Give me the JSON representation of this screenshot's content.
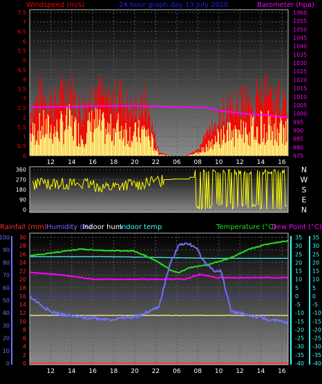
{
  "header": {
    "windspeed_label": "Windspeed (m/s)",
    "graph_title": "24 hour graph day   13 July 2010",
    "barometer_label": "Barometer (hpa)"
  },
  "bottom_header": {
    "rainfall_label": "Rainfall (mm)",
    "humidity_label": "Humidity (%)",
    "indoor_hum_label": "Indoor hum",
    "indoor_temp_label": "Indoor temp",
    "temperature_label": "Temperature (°C)",
    "dewpoint_label": "Dew Point (°C)"
  },
  "colors": {
    "windspeed": "#ff0000",
    "windgust": "#ffff80",
    "barometer": "#ff00ff",
    "direction": "#ffff00",
    "rainfall": "#ff3030",
    "humidity": "#7070ff",
    "indoor_hum": "#ffff80",
    "indoor_temp": "#40ffff",
    "temperature": "#20e020",
    "dewpoint": "#ff00ff",
    "left_axis": "#ff0000",
    "right_axis": "#ff00ff"
  },
  "chart_data": [
    {
      "type": "line",
      "title": "24 hour graph day   13 July 2010",
      "x_tick_labels": [
        "12",
        "14",
        "16",
        "18",
        "20",
        "22",
        "06",
        "08",
        "10",
        "12",
        "14",
        "16"
      ],
      "y_left": {
        "label": "Windspeed (m/s)",
        "ylim": [
          0,
          7.5
        ],
        "ticks": [
          "0",
          "0.5",
          "1",
          "1.5",
          "2",
          "2.5",
          "3",
          "3.5",
          "4",
          "4.5",
          "5",
          "5.5",
          "6",
          "6.5",
          "7",
          "7.5"
        ]
      },
      "y_right": {
        "label": "Barometer (hpa)",
        "ylim": [
          975,
          1060
        ],
        "ticks": [
          "975",
          "980",
          "985",
          "990",
          "995",
          "1000",
          "1005",
          "1010",
          "1015",
          "1020",
          "1025",
          "1030",
          "1035",
          "1040",
          "1045",
          "1050",
          "1055",
          "1060"
        ]
      },
      "series": [
        {
          "name": "Barometer (hpa)",
          "axis": "right",
          "x": [
            0,
            0.2,
            0.4,
            0.55,
            0.68,
            0.74,
            0.8,
            0.86,
            0.92,
            1
          ],
          "values": [
            1003.8,
            1004.3,
            1004.5,
            1004.0,
            1003.5,
            1001.5,
            1000.6,
            999.5,
            999.0,
            997.5
          ]
        },
        {
          "name": "Windspeed (m/s)",
          "axis": "left",
          "note": "fluctuating speed/gust bars read off the chart",
          "x": [
            0,
            0.05,
            0.1,
            0.15,
            0.2,
            0.25,
            0.3,
            0.35,
            0.4,
            0.45,
            0.5,
            0.55,
            0.6,
            0.65,
            0.7,
            0.75,
            0.8,
            0.85,
            0.9,
            0.95,
            1
          ],
          "values": [
            2.5,
            3.5,
            3.0,
            4.0,
            2.5,
            4.0,
            3.0,
            3.5,
            2.5,
            3.0,
            0.2,
            0,
            0,
            0.3,
            1.5,
            2.5,
            3.0,
            3.0,
            3.5,
            3.5,
            3.0
          ]
        }
      ]
    },
    {
      "type": "scatter",
      "x_tick_labels": [],
      "y_left": {
        "label": "",
        "ylim": [
          0,
          360
        ],
        "ticks": [
          "0",
          "90",
          "180",
          "270",
          "360"
        ]
      },
      "y_right": {
        "label": "",
        "ticks": [
          "N",
          "W",
          "S",
          "E",
          "N"
        ]
      },
      "series": [
        {
          "name": "Wind direction",
          "x": [
            0,
            0.1,
            0.2,
            0.3,
            0.45,
            0.55,
            0.64,
            0.66,
            0.7,
            0.75,
            0.8,
            0.85,
            0.9,
            0.95,
            1
          ],
          "values": [
            225,
            240,
            230,
            200,
            240,
            270,
            275,
            360,
            360,
            20,
            350,
            180,
            40,
            350,
            200
          ]
        }
      ]
    },
    {
      "type": "line",
      "x_tick_labels": [
        "12",
        "14",
        "16",
        "18",
        "20",
        "22",
        "06",
        "08",
        "10",
        "12",
        "14",
        "16"
      ],
      "y_left_outer": {
        "label": "Rainfall (mm)",
        "ylim": [
          0,
          100
        ],
        "ticks": [
          "0",
          "10",
          "20",
          "30",
          "40",
          "50",
          "60",
          "70",
          "80",
          "90",
          "100"
        ]
      },
      "y_left_inner": {
        "label": "Humidity (%)",
        "ylim": [
          0,
          30
        ],
        "ticks": [
          "0",
          "2",
          "4",
          "6",
          "8",
          "10",
          "12",
          "14",
          "16",
          "18",
          "20",
          "22",
          "24",
          "26",
          "28",
          "30"
        ]
      },
      "y_right_outer": {
        "label": "Temperature (°C)",
        "ylim": [
          -40,
          35
        ],
        "ticks": [
          "35",
          "30",
          "25",
          "20",
          "15",
          "10",
          "5",
          "0",
          "-5",
          "-10",
          "-15",
          "-20",
          "-25",
          "-30",
          "-35",
          "-40"
        ]
      },
      "y_right_inner": {
        "label": "Dew Point (°C)",
        "ylim": [
          -40,
          35
        ],
        "ticks": [
          "35",
          "30",
          "25",
          "20",
          "15",
          "10",
          "5",
          "0",
          "-5",
          "-10",
          "-15",
          "-20",
          "-25",
          "-30",
          "-35",
          "-40"
        ]
      },
      "series": [
        {
          "name": "Temperature (°C)",
          "x": [
            0,
            0.1,
            0.2,
            0.3,
            0.4,
            0.45,
            0.5,
            0.55,
            0.58,
            0.62,
            0.7,
            0.78,
            0.85,
            0.92,
            1
          ],
          "values": [
            24,
            26,
            28,
            27,
            27,
            24,
            20,
            15,
            14,
            17,
            19,
            23,
            28,
            31,
            33
          ]
        },
        {
          "name": "Indoor temp",
          "x": [
            0,
            0.3,
            0.5,
            0.7,
            1
          ],
          "values": [
            23.5,
            23.5,
            23.0,
            22.5,
            22.5
          ]
        },
        {
          "name": "Dew Point (°C)",
          "x": [
            0,
            0.1,
            0.25,
            0.45,
            0.52,
            0.6,
            0.66,
            0.72,
            0.85,
            1
          ],
          "values": [
            14,
            13,
            10,
            10,
            10,
            10,
            13,
            11,
            11,
            11
          ]
        },
        {
          "name": "Humidity (%)",
          "x": [
            0,
            0.04,
            0.08,
            0.14,
            0.22,
            0.32,
            0.42,
            0.5,
            0.54,
            0.58,
            0.6,
            0.64,
            0.68,
            0.72,
            0.74,
            0.78,
            0.85,
            0.92,
            1
          ],
          "values": [
            53,
            47,
            41,
            38,
            36,
            35,
            37,
            45,
            77,
            95,
            95,
            93,
            79,
            73,
            73,
            41,
            38,
            35,
            32
          ]
        },
        {
          "name": "Indoor hum",
          "x": [
            0,
            0.5,
            1
          ],
          "values": [
            38,
            38,
            38
          ]
        },
        {
          "name": "Rainfall (mm)",
          "x": [
            0,
            1
          ],
          "values": [
            0,
            0
          ]
        }
      ]
    }
  ]
}
